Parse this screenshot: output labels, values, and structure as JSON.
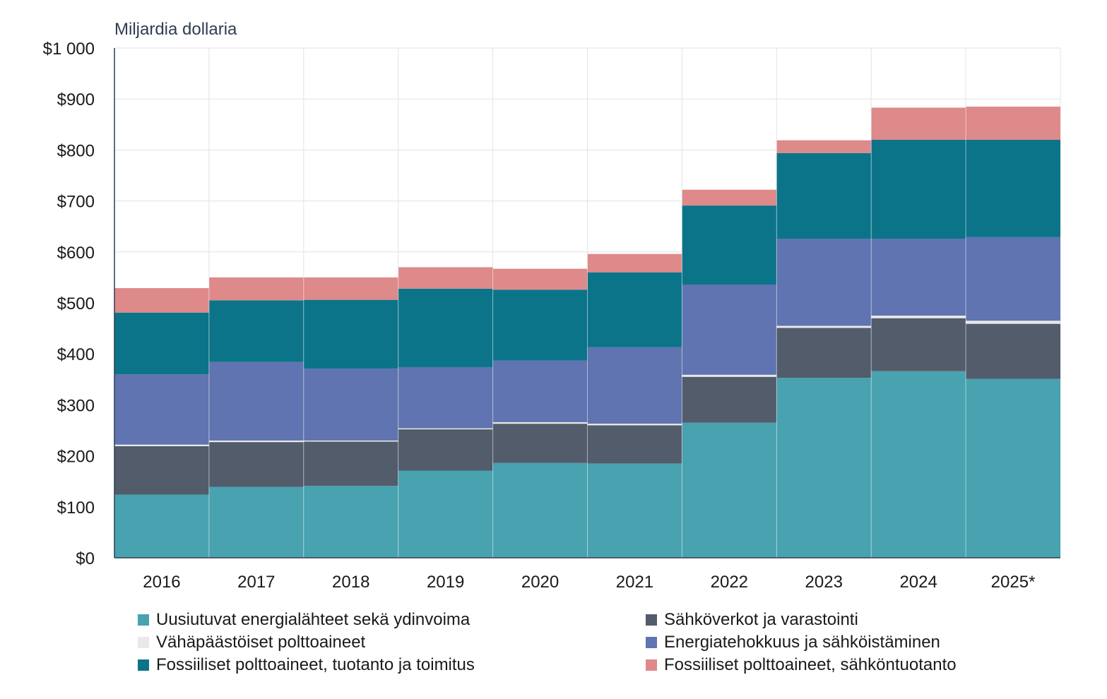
{
  "chart_data": {
    "type": "bar",
    "stacked": true,
    "ylabel": "Miljardia dollaria",
    "ylim": [
      0,
      1000
    ],
    "yticks": [
      "$0",
      "$100",
      "$200",
      "$300",
      "$400",
      "$500",
      "$600",
      "$700",
      "$800",
      "$900",
      "$1 000"
    ],
    "grid": true,
    "legend_placement": "bottom",
    "categories": [
      "2016",
      "2017",
      "2018",
      "2019",
      "2020",
      "2021",
      "2022",
      "2023",
      "2024",
      "2025*"
    ],
    "series": [
      {
        "name": "Uusiutuvat energialähteet sekä ydinvoima",
        "color": "#48a2b0",
        "values": [
          124,
          139,
          141,
          171,
          186,
          185,
          265,
          353,
          366,
          351
        ]
      },
      {
        "name": "Sähköverkot ja varastointi",
        "color": "#525c6b",
        "values": [
          95,
          88,
          87,
          81,
          77,
          75,
          90,
          98,
          104,
          108
        ]
      },
      {
        "name": "Vähäpäästöiset polttoaineet",
        "color": "#e9e9e9",
        "values": [
          3,
          3,
          2,
          2,
          3,
          3,
          4,
          4,
          5,
          6
        ]
      },
      {
        "name": "Energiatehokkuus ja sähköistäminen",
        "color": "#5f74b0",
        "values": [
          138,
          154,
          141,
          120,
          121,
          150,
          177,
          171,
          151,
          164
        ]
      },
      {
        "name": "Fossiiliset polttoaineet, tuotanto ja toimitus",
        "color": "#0b7489",
        "values": [
          121,
          121,
          135,
          154,
          139,
          147,
          155,
          168,
          194,
          191
        ]
      },
      {
        "name": "Fossiiliset polttoaineet, sähköntuotanto",
        "color": "#de898a",
        "values": [
          48,
          45,
          44,
          42,
          41,
          36,
          31,
          25,
          63,
          65
        ]
      }
    ]
  }
}
